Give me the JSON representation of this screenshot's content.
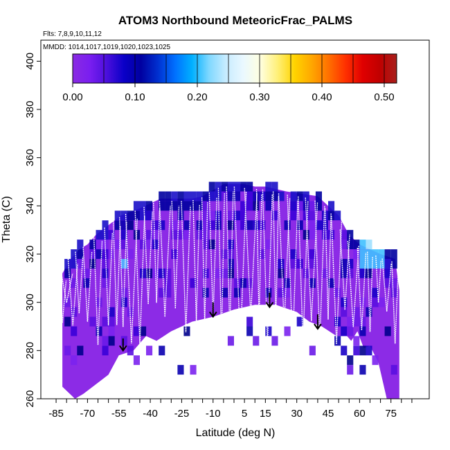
{
  "chart_data": {
    "type": "heatmap",
    "title": "ATOM3 Northbound MeteoricFrac_PALMS",
    "subtitle_flights": "Flts: 7,8,9,10,11,12",
    "subtitle_dates": "MMDD: 1014,1017,1019,1020,1023,1025",
    "xlabel": "Latitude (deg N)",
    "ylabel": "Theta (C)",
    "xlim": [
      -87,
      88
    ],
    "ylim": [
      260,
      405
    ],
    "x_ticks": [
      -85,
      -70,
      -55,
      -40,
      -25,
      -10,
      5,
      15,
      30,
      45,
      60,
      75
    ],
    "y_ticks": [
      260,
      280,
      300,
      320,
      340,
      360,
      380,
      400
    ],
    "colorbar": {
      "range": [
        0.0,
        0.52
      ],
      "ticks": [
        "0.00",
        "0.10",
        "0.20",
        "0.30",
        "0.40",
        "0.50"
      ],
      "tick_values": [
        0.0,
        0.1,
        0.2,
        0.3,
        0.4,
        0.5
      ],
      "colors": [
        "#8a2be2",
        "#7a1ef0",
        "#4b0fdc",
        "#0a00c8",
        "#0000a0",
        "#0030d0",
        "#0070ff",
        "#00b0ff",
        "#80d8ff",
        "#c8ecff",
        "#eaf8ff",
        "#ffffe0",
        "#fff07a",
        "#ffd400",
        "#ffa800",
        "#ff7000",
        "#ff3000",
        "#e00000",
        "#c00000",
        "#a8201c"
      ]
    },
    "domain_outline": {
      "upper": [
        [
          -82,
          312
        ],
        [
          -78,
          318
        ],
        [
          -74,
          322
        ],
        [
          -70,
          324
        ],
        [
          -66,
          328
        ],
        [
          -60,
          332
        ],
        [
          -54,
          336
        ],
        [
          -45,
          339
        ],
        [
          -35,
          343
        ],
        [
          -20,
          343
        ],
        [
          -15,
          344
        ],
        [
          -5,
          349
        ],
        [
          5,
          349
        ],
        [
          10,
          348
        ],
        [
          15,
          348
        ],
        [
          25,
          346
        ],
        [
          40,
          344
        ],
        [
          45,
          340
        ],
        [
          50,
          336
        ],
        [
          55,
          328
        ],
        [
          60,
          324
        ],
        [
          65,
          322
        ],
        [
          70,
          320
        ],
        [
          77,
          318
        ],
        [
          79,
          305
        ]
      ],
      "lower": [
        [
          79,
          260
        ],
        [
          73,
          260
        ],
        [
          69,
          275
        ],
        [
          65,
          282
        ],
        [
          62,
          281
        ],
        [
          59,
          288
        ],
        [
          56,
          284
        ],
        [
          54,
          286
        ],
        [
          49,
          286
        ],
        [
          42,
          290
        ],
        [
          36,
          292
        ],
        [
          30,
          296
        ],
        [
          20,
          299
        ],
        [
          10,
          299
        ],
        [
          0,
          297
        ],
        [
          -10,
          294
        ],
        [
          -20,
          292
        ],
        [
          -30,
          288
        ],
        [
          -37,
          284
        ],
        [
          -42,
          286
        ],
        [
          -48,
          280
        ],
        [
          -55,
          278
        ],
        [
          -60,
          270
        ],
        [
          -66,
          266
        ],
        [
          -72,
          262
        ],
        [
          -76,
          260
        ],
        [
          -82,
          265
        ]
      ]
    },
    "flight_profiles_lat": [
      -82,
      -80,
      -77,
      -74,
      -70,
      -65,
      -60,
      -56,
      -53,
      -49,
      -45,
      -41,
      -37,
      -33,
      -28,
      -23,
      -18,
      -14,
      -10,
      -6,
      -2,
      3,
      8,
      12,
      16,
      20,
      24,
      28,
      33,
      37,
      41,
      45,
      49,
      53,
      57,
      61,
      65,
      69,
      73,
      77
    ],
    "arrows": [
      {
        "lat": -53,
        "theta_top": 285,
        "theta_bottom": 280
      },
      {
        "lat": -10,
        "theta_top": 300,
        "theta_bottom": 294
      },
      {
        "lat": 17,
        "theta_top": 304,
        "theta_bottom": 298
      },
      {
        "lat": 40,
        "theta_top": 295,
        "theta_bottom": 289
      }
    ]
  }
}
